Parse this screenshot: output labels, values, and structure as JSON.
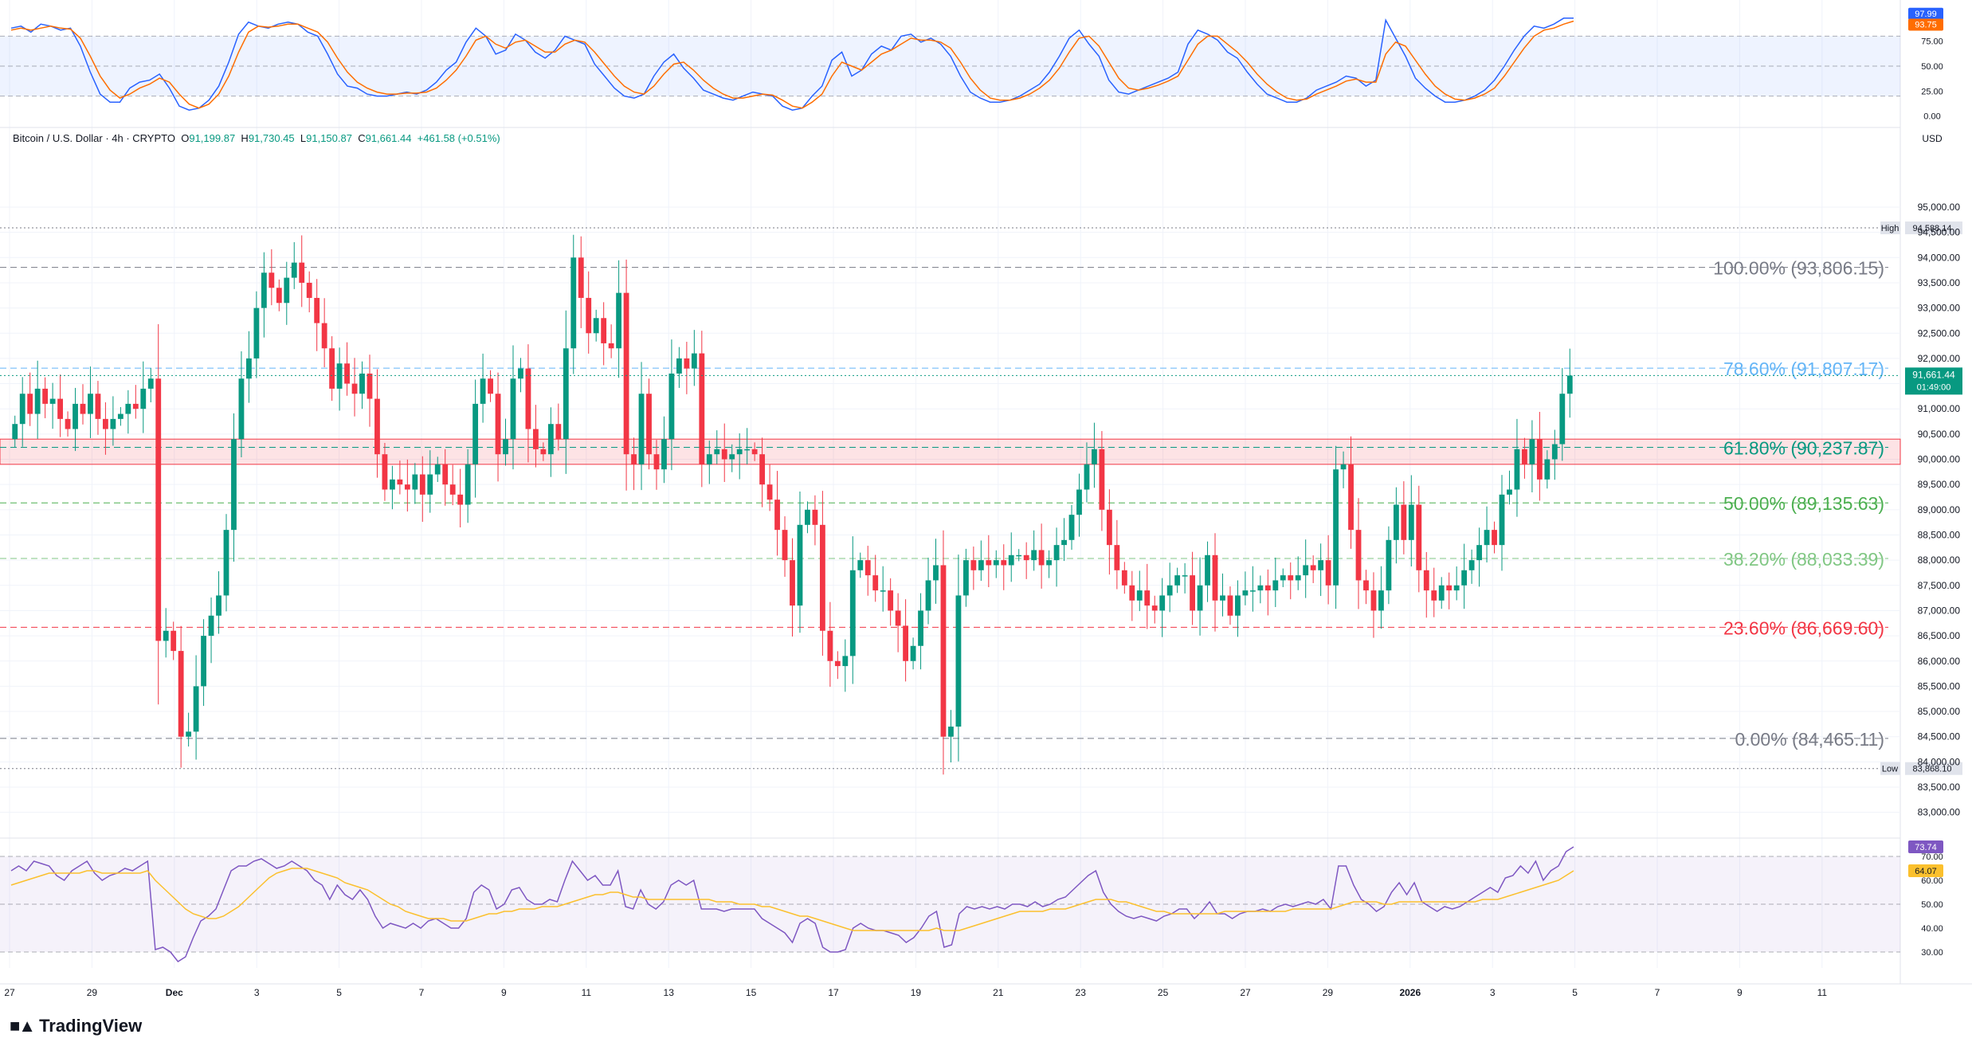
{
  "symbol": {
    "name": "Bitcoin / U.S. Dollar · 4h · CRYPTO",
    "open_label": "O",
    "open": "91,199.87",
    "high_label": "H",
    "high": "91,730.45",
    "low_label": "L",
    "low": "91,150.87",
    "close_label": "C",
    "close": "91,661.44",
    "change": "+461.58 (+0.51%)"
  },
  "currency": "USD",
  "brand": "TradingView",
  "colors": {
    "up": "#089981",
    "down": "#f23645",
    "stoch_k": "#2962ff",
    "stoch_d": "#ff6d00",
    "rsi": "#7e57c2",
    "rsi_ma": "#fbc02d",
    "zone": "#f23645"
  },
  "chart_data": [
    {
      "type": "line",
      "panel": "stochastic",
      "ylim": [
        -5,
        105
      ],
      "y_ticks": [
        "0.00",
        "25.00",
        "50.00",
        "75.00"
      ],
      "band": [
        20,
        80
      ],
      "series": [
        {
          "values": [
            88,
            90,
            84,
            92,
            90,
            86,
            88,
            70,
            44,
            22,
            14,
            14,
            28,
            34,
            36,
            42,
            28,
            10,
            6,
            8,
            16,
            30,
            54,
            82,
            94,
            90,
            88,
            92,
            94,
            92,
            84,
            80,
            62,
            42,
            30,
            28,
            22,
            20,
            20,
            22,
            24,
            22,
            26,
            34,
            46,
            54,
            74,
            88,
            80,
            62,
            66,
            82,
            76,
            64,
            58,
            66,
            80,
            76,
            72,
            52,
            40,
            28,
            20,
            18,
            22,
            40,
            54,
            62,
            48,
            38,
            26,
            22,
            18,
            16,
            20,
            24,
            22,
            20,
            10,
            6,
            8,
            20,
            30,
            56,
            64,
            40,
            46,
            62,
            70,
            66,
            80,
            82,
            74,
            78,
            72,
            60,
            40,
            24,
            18,
            14,
            14,
            16,
            20,
            26,
            32,
            44,
            60,
            78,
            86,
            72,
            60,
            36,
            24,
            22,
            26,
            30,
            34,
            38,
            44,
            72,
            86,
            82,
            76,
            64,
            58,
            44,
            32,
            22,
            18,
            14,
            14,
            18,
            26,
            30,
            34,
            40,
            38,
            30,
            36,
            96,
            78,
            60,
            38,
            28,
            20,
            14,
            14,
            16,
            20,
            26,
            36,
            50,
            66,
            80,
            90,
            88,
            92,
            98,
            98
          ]
        },
        {
          "values": [
            86,
            88,
            86,
            88,
            90,
            88,
            87,
            78,
            60,
            40,
            26,
            18,
            22,
            28,
            32,
            38,
            34,
            22,
            12,
            8,
            12,
            22,
            40,
            64,
            84,
            90,
            89,
            90,
            92,
            92,
            88,
            84,
            74,
            58,
            44,
            34,
            28,
            24,
            22,
            22,
            23,
            23,
            24,
            28,
            36,
            46,
            60,
            76,
            80,
            72,
            68,
            74,
            76,
            70,
            64,
            64,
            72,
            76,
            74,
            64,
            52,
            40,
            30,
            24,
            22,
            30,
            42,
            52,
            54,
            46,
            36,
            28,
            22,
            18,
            18,
            20,
            22,
            21,
            16,
            10,
            8,
            14,
            22,
            40,
            54,
            50,
            46,
            54,
            62,
            66,
            72,
            78,
            76,
            76,
            74,
            68,
            54,
            38,
            26,
            18,
            16,
            16,
            18,
            22,
            28,
            36,
            48,
            64,
            78,
            80,
            70,
            54,
            38,
            28,
            26,
            28,
            31,
            35,
            40,
            56,
            72,
            80,
            80,
            72,
            64,
            54,
            42,
            32,
            24,
            18,
            16,
            17,
            22,
            26,
            30,
            35,
            37,
            34,
            34,
            62,
            74,
            70,
            56,
            42,
            30,
            22,
            17,
            16,
            18,
            22,
            28,
            40,
            54,
            68,
            80,
            86,
            88,
            92,
            95
          ]
        }
      ],
      "last_values": [
        "97.99",
        "93.75"
      ]
    },
    {
      "type": "candlestick",
      "panel": "price",
      "ylim": [
        82600,
        95600
      ],
      "y_ticks": [
        "83,000.00",
        "83,500.00",
        "84,000.00",
        "84,500.00",
        "85,000.00",
        "85,500.00",
        "86,000.00",
        "86,500.00",
        "87,000.00",
        "87,500.00",
        "88,000.00",
        "88,500.00",
        "89,000.00",
        "89,500.00",
        "90,000.00",
        "90,500.00",
        "91,000.00",
        "91,500.00",
        "92,000.00",
        "92,500.00",
        "93,000.00",
        "93,500.00",
        "94,000.00",
        "94,500.00",
        "95,000.00"
      ],
      "x_ticks": [
        "27",
        "29",
        "Dec",
        "3",
        "5",
        "7",
        "9",
        "11",
        "13",
        "15",
        "17",
        "19",
        "21",
        "23",
        "25",
        "27",
        "29",
        "2026",
        "3",
        "5",
        "7",
        "9",
        "11"
      ],
      "high_label": "High",
      "high_value": "94,588.14",
      "low_label": "Low",
      "low_value": "83,868.10",
      "last_price": "91,661.44",
      "countdown": "01:49:00",
      "zone": [
        89900,
        90400
      ],
      "fibonacci": [
        {
          "label": "100.00% (93,806.15)",
          "value": 93806.15,
          "color": "#787b86"
        },
        {
          "label": "78.60% (91,807.17)",
          "value": 91807.17,
          "color": "#64b5f6"
        },
        {
          "label": "61.80% (90,237.87)",
          "value": 90237.87,
          "color": "#089981"
        },
        {
          "label": "50.00% (89,135.63)",
          "value": 89135.63,
          "color": "#4caf50"
        },
        {
          "label": "38.20% (88,033.39)",
          "value": 88033.39,
          "color": "#81c784"
        },
        {
          "label": "23.60% (86,669.60)",
          "value": 86669.6,
          "color": "#f23645"
        },
        {
          "label": "0.00% (84,465.11)",
          "value": 84465.11,
          "color": "#787b86"
        }
      ],
      "close": [
        90700,
        91300,
        90900,
        91400,
        91100,
        91200,
        90800,
        90600,
        91100,
        90900,
        91300,
        90800,
        90600,
        90800,
        90900,
        91100,
        91000,
        91400,
        91600,
        86400,
        86600,
        86200,
        84500,
        84600,
        85500,
        86500,
        86900,
        87300,
        88600,
        90400,
        91600,
        92000,
        93000,
        93700,
        93400,
        93100,
        93600,
        93900,
        93500,
        93200,
        92700,
        92200,
        91400,
        91900,
        91500,
        91300,
        91700,
        91200,
        90100,
        89400,
        89600,
        89500,
        89400,
        89700,
        89300,
        89700,
        89900,
        89500,
        89300,
        89100,
        89900,
        91100,
        91600,
        91300,
        90100,
        90400,
        91600,
        91800,
        90600,
        90200,
        90100,
        90700,
        90400,
        92200,
        94000,
        93200,
        92500,
        92800,
        92300,
        92200,
        93300,
        90100,
        89900,
        91300,
        90100,
        89800,
        90400,
        91700,
        92000,
        91800,
        92100,
        89900,
        90100,
        90200,
        90000,
        90100,
        90200,
        90200,
        90100,
        89500,
        89200,
        88600,
        88000,
        87100,
        88700,
        89000,
        88700,
        86600,
        86000,
        85900,
        86100,
        87800,
        88000,
        87700,
        87400,
        87400,
        87000,
        86700,
        86000,
        86300,
        87000,
        87600,
        87900,
        84500,
        84700,
        87300,
        88000,
        87800,
        88000,
        87900,
        88000,
        87900,
        88100,
        88100,
        88000,
        88200,
        87900,
        88000,
        88300,
        88400,
        88900,
        89400,
        89900,
        90200,
        89000,
        88300,
        87800,
        87500,
        87200,
        87400,
        87100,
        87000,
        87300,
        87500,
        87700,
        87700,
        87000,
        87500,
        88100,
        87200,
        87300,
        86900,
        87300,
        87400,
        87400,
        87500,
        87400,
        87600,
        87700,
        87600,
        87700,
        87900,
        87800,
        88000,
        87500,
        89800,
        89900,
        88600,
        87600,
        87400,
        87000,
        87400,
        88400,
        89100,
        88400,
        89100,
        87800,
        87400,
        87200,
        87500,
        87400,
        87500,
        87800,
        88000,
        88300,
        88600,
        88300,
        89300,
        89400,
        90200,
        89900,
        90400,
        89600,
        90000,
        90300,
        91300,
        91660
      ]
    },
    {
      "type": "line",
      "panel": "rsi",
      "ylim": [
        25,
        75
      ],
      "y_ticks": [
        "30.00",
        "40.00",
        "50.00",
        "60.00",
        "70.00"
      ],
      "band": [
        30,
        70
      ],
      "series": [
        {
          "values": [
            64,
            66,
            64,
            68,
            67,
            66,
            62,
            60,
            64,
            66,
            68,
            63,
            60,
            62,
            63,
            65,
            64,
            66,
            68,
            31,
            32,
            30,
            26,
            28,
            36,
            43,
            45,
            48,
            56,
            64,
            66,
            66,
            68,
            69,
            67,
            65,
            66,
            68,
            66,
            64,
            60,
            58,
            52,
            58,
            54,
            52,
            56,
            52,
            45,
            40,
            42,
            41,
            40,
            42,
            40,
            43,
            44,
            42,
            40,
            40,
            44,
            55,
            58,
            56,
            48,
            50,
            56,
            57,
            52,
            50,
            50,
            52,
            51,
            60,
            68,
            64,
            60,
            62,
            58,
            58,
            64,
            49,
            48,
            56,
            50,
            48,
            51,
            58,
            60,
            58,
            60,
            48,
            48,
            48,
            47,
            48,
            48,
            48,
            48,
            44,
            42,
            40,
            38,
            34,
            42,
            44,
            42,
            32,
            30,
            30,
            31,
            40,
            42,
            40,
            39,
            39,
            38,
            37,
            34,
            36,
            40,
            45,
            47,
            32,
            33,
            46,
            49,
            48,
            49,
            48,
            49,
            48,
            50,
            50,
            49,
            51,
            49,
            50,
            52,
            53,
            56,
            59,
            62,
            64,
            55,
            50,
            47,
            45,
            44,
            45,
            44,
            43,
            45,
            46,
            48,
            48,
            44,
            47,
            51,
            46,
            46,
            44,
            46,
            47,
            47,
            48,
            47,
            49,
            50,
            49,
            50,
            51,
            50,
            52,
            48,
            66,
            66,
            58,
            52,
            50,
            47,
            49,
            55,
            59,
            54,
            59,
            51,
            49,
            47,
            49,
            48,
            49,
            51,
            53,
            55,
            57,
            55,
            61,
            62,
            66,
            63,
            68,
            60,
            64,
            66,
            72,
            74
          ]
        },
        {
          "values": [
            58,
            59,
            60,
            61,
            62,
            63,
            63,
            63,
            63,
            63,
            64,
            64,
            63,
            63,
            63,
            63,
            63,
            63,
            64,
            60,
            57,
            54,
            51,
            48,
            46,
            45,
            44,
            44,
            45,
            47,
            49,
            52,
            55,
            58,
            61,
            63,
            64,
            65,
            65,
            65,
            64,
            63,
            62,
            61,
            59,
            58,
            57,
            56,
            54,
            52,
            50,
            49,
            47,
            46,
            45,
            44,
            44,
            44,
            43,
            43,
            43,
            44,
            45,
            46,
            46,
            47,
            47,
            48,
            48,
            48,
            49,
            49,
            49,
            50,
            51,
            52,
            53,
            54,
            54,
            55,
            55,
            54,
            53,
            53,
            52,
            52,
            52,
            52,
            52,
            52,
            52,
            52,
            52,
            51,
            51,
            51,
            50,
            50,
            50,
            49,
            49,
            48,
            47,
            46,
            45,
            45,
            44,
            43,
            42,
            41,
            40,
            39,
            39,
            39,
            39,
            39,
            39,
            39,
            39,
            39,
            39,
            39,
            40,
            39,
            39,
            39,
            40,
            41,
            42,
            43,
            44,
            45,
            46,
            47,
            47,
            47,
            47,
            48,
            48,
            48,
            49,
            50,
            51,
            52,
            52,
            52,
            51,
            51,
            50,
            49,
            48,
            47,
            47,
            46,
            46,
            46,
            46,
            46,
            46,
            46,
            47,
            47,
            47,
            47,
            47,
            47,
            47,
            47,
            47,
            48,
            48,
            48,
            48,
            48,
            48,
            49,
            50,
            51,
            51,
            51,
            51,
            50,
            50,
            51,
            51,
            51,
            51,
            51,
            51,
            51,
            51,
            51,
            51,
            51,
            52,
            52,
            52,
            53,
            54,
            55,
            56,
            57,
            58,
            59,
            60,
            62,
            64
          ]
        }
      ],
      "last_values": [
        "73.74",
        "64.07"
      ]
    }
  ]
}
